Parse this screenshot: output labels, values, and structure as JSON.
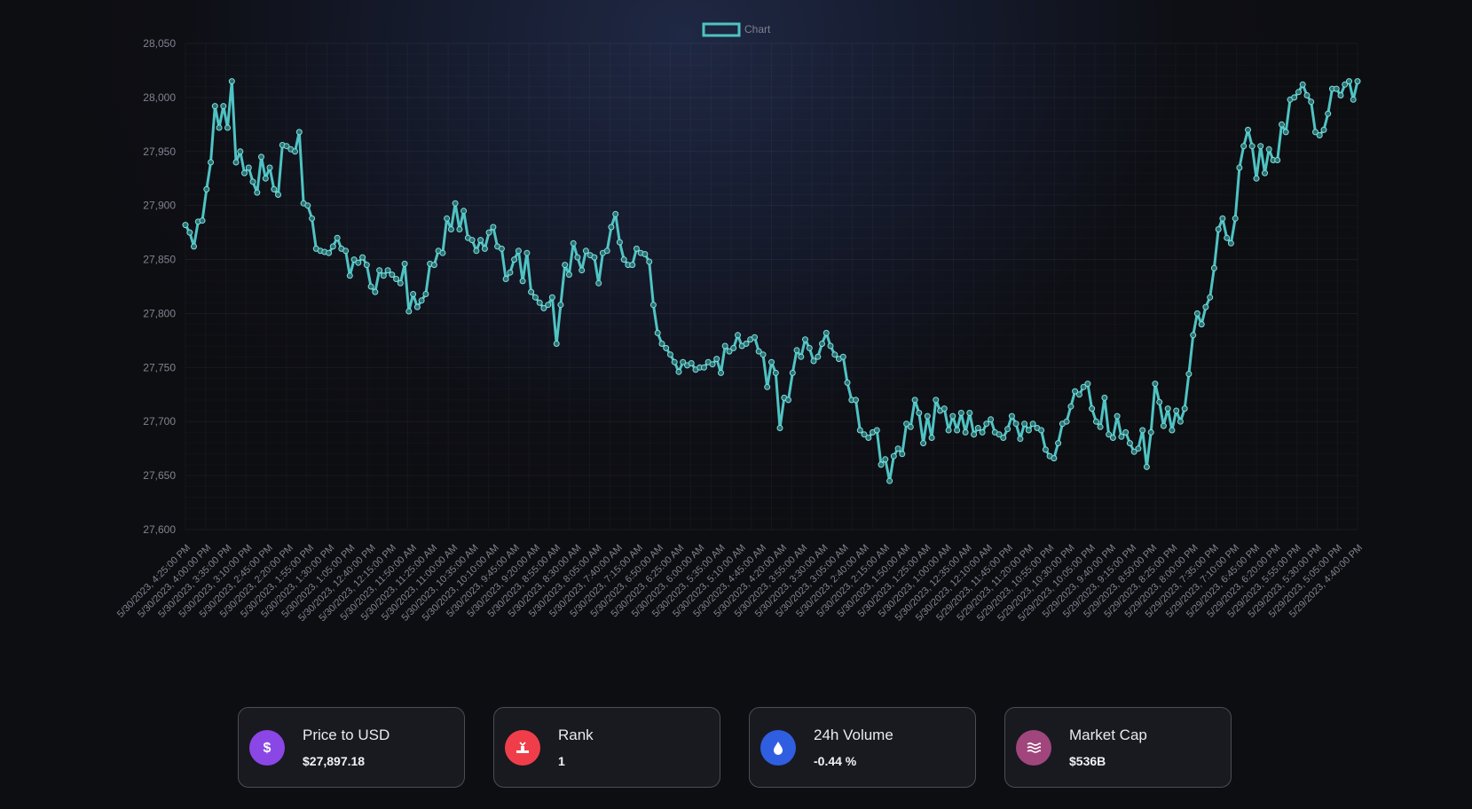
{
  "chart_data": {
    "type": "line",
    "legend": {
      "label": "Chart",
      "placement": "top-center"
    },
    "ylim": [
      27600,
      28050
    ],
    "yticks": [
      "27,600",
      "27,650",
      "27,700",
      "27,750",
      "27,800",
      "27,850",
      "27,900",
      "27,950",
      "28,000",
      "28,050"
    ],
    "x_labels": [
      "5/30/2023, 4:25:00 PM",
      "5/30/2023, 4:00:00 PM",
      "5/30/2023, 3:35:00 PM",
      "5/30/2023, 3:10:00 PM",
      "5/30/2023, 2:45:00 PM",
      "5/30/2023, 2:20:00 PM",
      "5/30/2023, 1:55:00 PM",
      "5/30/2023, 1:30:00 PM",
      "5/30/2023, 1:05:00 PM",
      "5/30/2023, 12:40:00 PM",
      "5/30/2023, 12:15:00 PM",
      "5/30/2023, 11:50:00 AM",
      "5/30/2023, 11:25:00 AM",
      "5/30/2023, 11:00:00 AM",
      "5/30/2023, 10:35:00 AM",
      "5/30/2023, 10:10:00 AM",
      "5/30/2023, 9:45:00 AM",
      "5/30/2023, 9:20:00 AM",
      "5/30/2023, 8:55:00 AM",
      "5/30/2023, 8:30:00 AM",
      "5/30/2023, 8:05:00 AM",
      "5/30/2023, 7:40:00 AM",
      "5/30/2023, 7:15:00 AM",
      "5/30/2023, 6:50:00 AM",
      "5/30/2023, 6:25:00 AM",
      "5/30/2023, 6:00:00 AM",
      "5/30/2023, 5:35:00 AM",
      "5/30/2023, 5:10:00 AM",
      "5/30/2023, 4:45:00 AM",
      "5/30/2023, 4:20:00 AM",
      "5/30/2023, 3:55:00 AM",
      "5/30/2023, 3:30:00 AM",
      "5/30/2023, 3:05:00 AM",
      "5/30/2023, 2:40:00 AM",
      "5/30/2023, 2:15:00 AM",
      "5/30/2023, 1:50:00 AM",
      "5/30/2023, 1:25:00 AM",
      "5/30/2023, 1:00:00 AM",
      "5/30/2023, 12:35:00 AM",
      "5/30/2023, 12:10:00 AM",
      "5/29/2023, 11:45:00 PM",
      "5/29/2023, 11:20:00 PM",
      "5/29/2023, 10:55:00 PM",
      "5/29/2023, 10:30:00 PM",
      "5/29/2023, 10:05:00 PM",
      "5/29/2023, 9:40:00 PM",
      "5/29/2023, 9:15:00 PM",
      "5/29/2023, 8:50:00 PM",
      "5/29/2023, 8:25:00 PM",
      "5/29/2023, 8:00:00 PM",
      "5/29/2023, 7:35:00 PM",
      "5/29/2023, 7:10:00 PM",
      "5/29/2023, 6:45:00 PM",
      "5/29/2023, 6:20:00 PM",
      "5/29/2023, 5:55:00 PM",
      "5/29/2023, 5:30:00 PM",
      "5/29/2023, 5:05:00 PM",
      "5/29/2023, 4:40:00 PM"
    ],
    "points_per_label": 5,
    "series": [
      {
        "color": "#4fc3c3",
        "values": [
          27882,
          27875,
          27862,
          27885,
          27886,
          27915,
          27940,
          27992,
          27972,
          27992,
          27972,
          28015,
          27940,
          27950,
          27930,
          27935,
          27922,
          27912,
          27945,
          27925,
          27935,
          27915,
          27910,
          27956,
          27955,
          27952,
          27950,
          27968,
          27902,
          27900,
          27888,
          27860,
          27858,
          27857,
          27856,
          27862,
          27870,
          27860,
          27858,
          27835,
          27850,
          27847,
          27852,
          27845,
          27825,
          27820,
          27840,
          27835,
          27840,
          27836,
          27832,
          27828,
          27846,
          27802,
          27818,
          27806,
          27812,
          27818,
          27846,
          27845,
          27858,
          27856,
          27888,
          27878,
          27902,
          27878,
          27895,
          27870,
          27868,
          27858,
          27868,
          27860,
          27875,
          27880,
          27862,
          27860,
          27832,
          27838,
          27850,
          27858,
          27830,
          27856,
          27820,
          27815,
          27810,
          27805,
          27808,
          27815,
          27772,
          27808,
          27845,
          27836,
          27865,
          27852,
          27840,
          27858,
          27854,
          27852,
          27828,
          27856,
          27858,
          27880,
          27892,
          27866,
          27850,
          27845,
          27845,
          27860,
          27856,
          27855,
          27848,
          27808,
          27782,
          27772,
          27768,
          27762,
          27755,
          27746,
          27755,
          27752,
          27754,
          27748,
          27750,
          27750,
          27755,
          27753,
          27758,
          27745,
          27770,
          27765,
          27768,
          27780,
          27770,
          27772,
          27776,
          27778,
          27765,
          27762,
          27732,
          27755,
          27745,
          27694,
          27722,
          27720,
          27745,
          27766,
          27760,
          27776,
          27768,
          27756,
          27760,
          27772,
          27782,
          27770,
          27762,
          27758,
          27760,
          27736,
          27720,
          27720,
          27692,
          27688,
          27685,
          27690,
          27692,
          27660,
          27665,
          27645,
          27668,
          27675,
          27670,
          27698,
          27695,
          27720,
          27708,
          27680,
          27705,
          27685,
          27720,
          27710,
          27712,
          27692,
          27705,
          27692,
          27708,
          27690,
          27708,
          27688,
          27694,
          27690,
          27698,
          27702,
          27690,
          27688,
          27685,
          27693,
          27705,
          27698,
          27684,
          27698,
          27692,
          27698,
          27694,
          27692,
          27674,
          27668,
          27666,
          27680,
          27698,
          27700,
          27714,
          27728,
          27725,
          27732,
          27735,
          27712,
          27700,
          27695,
          27722,
          27688,
          27685,
          27705,
          27686,
          27690,
          27680,
          27672,
          27675,
          27692,
          27658,
          27690,
          27735,
          27718,
          27696,
          27712,
          27692,
          27710,
          27700,
          27712,
          27744,
          27780,
          27800,
          27790,
          27806,
          27815,
          27842,
          27878,
          27888,
          27870,
          27865,
          27888,
          27935,
          27955,
          27970,
          27955,
          27925,
          27955,
          27930,
          27952,
          27942,
          27942,
          27975,
          27968,
          27998,
          28000,
          28005,
          28012,
          28002,
          27996,
          27968,
          27965,
          27970,
          27985,
          28008,
          28008,
          28002,
          28012,
          28015,
          27998,
          28015
        ]
      }
    ]
  },
  "cards": [
    {
      "label": "Price to USD",
      "value": "$27,897.18",
      "icon": "dollar-icon",
      "color": "#8b46e6"
    },
    {
      "label": "Rank",
      "value": "1",
      "icon": "podium-icon",
      "color": "#ef3e4a"
    },
    {
      "label": "24h Volume",
      "value": "-0.44 %",
      "icon": "droplet-icon",
      "color": "#2f5ee0"
    },
    {
      "label": "Market Cap",
      "value": "$536B",
      "icon": "waves-icon",
      "color": "#a0467c"
    }
  ]
}
